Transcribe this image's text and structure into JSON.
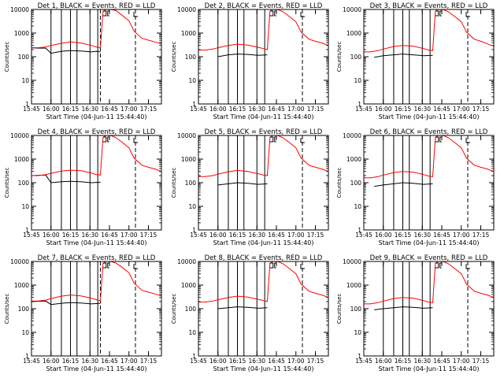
{
  "chart_data": [
    {
      "type": "line",
      "title": "Det 1, BLACK = Events, RED = LLD",
      "xlabel": "Start Time (04-Jun-11 15:44:40)",
      "ylabel": "Counts/sec",
      "yscale": "log",
      "ylim": [
        1,
        10000
      ],
      "xlim": [
        "15:45",
        "17:25"
      ],
      "xticks": [
        "15:45",
        "16:00",
        "16:15",
        "16:30",
        "16:45",
        "17:00",
        "17:15"
      ],
      "yticks": [
        "1",
        "10",
        "100",
        "1000",
        "10000"
      ],
      "series": [
        {
          "color": "#000000",
          "x": [
            "15:45",
            "15:50",
            "15:56",
            "16:00",
            "16:08",
            "16:15",
            "16:23",
            "16:31",
            "16:35",
            "16:38"
          ],
          "y": [
            240,
            230,
            230,
            140,
            170,
            180,
            175,
            160,
            170,
            160
          ]
        },
        {
          "color": "#ff0000",
          "x": [
            "15:45",
            "15:50",
            "15:56",
            "16:00",
            "16:08",
            "16:15",
            "16:23",
            "16:31",
            "16:35",
            "16:38",
            "16:40",
            "16:42",
            "16:46",
            "16:50",
            "16:55",
            "17:00",
            "17:04",
            "17:10",
            "17:15",
            "17:20",
            "17:25"
          ],
          "y": [
            240,
            240,
            260,
            300,
            370,
            420,
            380,
            300,
            260,
            240,
            8000,
            10000,
            10000,
            9000,
            5500,
            3300,
            1200,
            600,
            500,
            420,
            350
          ]
        }
      ],
      "vlines_solid": [
        "16:00",
        "16:08",
        "16:15",
        "16:20",
        "16:30",
        "16:36"
      ],
      "vlines_dashed": [
        "16:38",
        "17:05"
      ]
    },
    {
      "type": "line",
      "title": "Det 2, BLACK = Events, RED = LLD",
      "xlabel": "Start Time (04-Jun-11 15:44:40)",
      "ylabel": "Counts/sec",
      "yscale": "log",
      "ylim": [
        1,
        10000
      ],
      "xlim": [
        "15:45",
        "17:25"
      ],
      "xticks": [
        "15:45",
        "16:00",
        "16:15",
        "16:30",
        "16:45",
        "17:00",
        "17:15"
      ],
      "yticks": [
        "1",
        "10",
        "100",
        "1000",
        "10000"
      ],
      "series": [
        {
          "color": "#000000",
          "x": [
            "16:00",
            "16:08",
            "16:15",
            "16:23",
            "16:31",
            "16:38"
          ],
          "y": [
            100,
            120,
            130,
            125,
            115,
            120
          ]
        },
        {
          "color": "#ff0000",
          "x": [
            "15:45",
            "15:50",
            "15:56",
            "16:00",
            "16:08",
            "16:15",
            "16:23",
            "16:31",
            "16:35",
            "16:38",
            "16:40",
            "16:42",
            "16:46",
            "16:50",
            "16:55",
            "17:00",
            "17:04",
            "17:10",
            "17:15",
            "17:20",
            "17:25"
          ],
          "y": [
            190,
            190,
            210,
            240,
            300,
            340,
            310,
            250,
            220,
            200,
            8000,
            10000,
            10000,
            8000,
            5000,
            3000,
            1100,
            550,
            450,
            380,
            300
          ]
        }
      ],
      "vlines_solid": [
        "16:00",
        "16:08",
        "16:15",
        "16:20",
        "16:30",
        "16:36"
      ],
      "vlines_dashed": [
        "17:05"
      ]
    },
    {
      "type": "line",
      "title": "Det 3, BLACK = Events, RED = LLD",
      "xlabel": "Start Time (04-Jun-11 15:44:40)",
      "ylabel": "Counts/sec",
      "yscale": "log",
      "ylim": [
        1,
        10000
      ],
      "xlim": [
        "15:45",
        "17:25"
      ],
      "xticks": [
        "15:45",
        "16:00",
        "16:15",
        "16:30",
        "16:45",
        "17:00",
        "17:15"
      ],
      "yticks": [
        "1",
        "10",
        "100",
        "1000",
        "10000"
      ],
      "series": [
        {
          "color": "#000000",
          "x": [
            "15:53",
            "16:00",
            "16:08",
            "16:15",
            "16:23",
            "16:31",
            "16:38"
          ],
          "y": [
            95,
            110,
            120,
            130,
            120,
            110,
            115
          ]
        },
        {
          "color": "#ff0000",
          "x": [
            "15:45",
            "15:50",
            "15:56",
            "16:00",
            "16:08",
            "16:15",
            "16:23",
            "16:31",
            "16:35",
            "16:38",
            "16:40",
            "16:42",
            "16:46",
            "16:50",
            "16:55",
            "17:00",
            "17:04",
            "17:10",
            "17:15",
            "17:20",
            "17:25"
          ],
          "y": [
            160,
            160,
            180,
            210,
            270,
            300,
            280,
            220,
            190,
            180,
            8000,
            10000,
            10000,
            8000,
            5000,
            3000,
            1100,
            550,
            450,
            350,
            280
          ]
        }
      ],
      "vlines_solid": [
        "16:00",
        "16:08",
        "16:15",
        "16:20",
        "16:30",
        "16:36"
      ],
      "vlines_dashed": [
        "17:05"
      ]
    },
    {
      "type": "line",
      "title": "Det 4, BLACK = Events, RED = LLD",
      "xlabel": "Start Time (04-Jun-11 15:44:40)",
      "ylabel": "Counts/sec",
      "yscale": "log",
      "ylim": [
        1,
        10000
      ],
      "xlim": [
        "15:45",
        "17:25"
      ],
      "xticks": [
        "15:45",
        "16:00",
        "16:15",
        "16:30",
        "16:45",
        "17:00",
        "17:15"
      ],
      "yticks": [
        "1",
        "10",
        "100",
        "1000",
        "10000"
      ],
      "series": [
        {
          "color": "#000000",
          "x": [
            "15:45",
            "15:56",
            "16:00",
            "16:08",
            "16:15",
            "16:23",
            "16:31",
            "16:38"
          ],
          "y": [
            200,
            210,
            100,
            110,
            115,
            110,
            100,
            105
          ]
        },
        {
          "color": "#ff0000",
          "x": [
            "15:45",
            "15:50",
            "15:56",
            "16:00",
            "16:08",
            "16:15",
            "16:23",
            "16:31",
            "16:35",
            "16:38",
            "16:40",
            "16:42",
            "16:46",
            "16:50",
            "16:55",
            "17:00",
            "17:04",
            "17:10",
            "17:15",
            "17:20",
            "17:25"
          ],
          "y": [
            200,
            200,
            220,
            250,
            310,
            340,
            320,
            260,
            220,
            210,
            8000,
            10000,
            10000,
            8000,
            5000,
            3000,
            1100,
            550,
            450,
            380,
            300
          ]
        }
      ],
      "vlines_solid": [
        "16:00",
        "16:08",
        "16:15",
        "16:20",
        "16:30",
        "16:36"
      ],
      "vlines_dashed": [
        "17:05"
      ]
    },
    {
      "type": "line",
      "title": "Det 5, BLACK = Events, RED = LLD",
      "xlabel": "Start Time (04-Jun-11 15:44:40)",
      "ylabel": "Counts/sec",
      "yscale": "log",
      "ylim": [
        1,
        10000
      ],
      "xlim": [
        "15:45",
        "17:25"
      ],
      "xticks": [
        "15:45",
        "16:00",
        "16:15",
        "16:30",
        "16:45",
        "17:00",
        "17:15"
      ],
      "yticks": [
        "1",
        "10",
        "100",
        "1000",
        "10000"
      ],
      "series": [
        {
          "color": "#000000",
          "x": [
            "16:00",
            "16:08",
            "16:15",
            "16:23",
            "16:31",
            "16:38"
          ],
          "y": [
            80,
            90,
            100,
            95,
            85,
            90
          ]
        },
        {
          "color": "#ff0000",
          "x": [
            "15:45",
            "15:50",
            "15:56",
            "16:00",
            "16:08",
            "16:15",
            "16:23",
            "16:31",
            "16:35",
            "16:38",
            "16:40",
            "16:42",
            "16:46",
            "16:50",
            "16:55",
            "17:00",
            "17:04",
            "17:10",
            "17:15",
            "17:20",
            "17:25"
          ],
          "y": [
            180,
            180,
            200,
            230,
            290,
            330,
            300,
            240,
            210,
            200,
            8000,
            10000,
            10000,
            8000,
            5000,
            3000,
            1100,
            550,
            450,
            380,
            300
          ]
        }
      ],
      "vlines_solid": [
        "16:00",
        "16:08",
        "16:15",
        "16:20",
        "16:30",
        "16:36"
      ],
      "vlines_dashed": [
        "17:05"
      ]
    },
    {
      "type": "line",
      "title": "Det 6, BLACK = Events, RED = LLD",
      "xlabel": "Start Time (04-Jun-11 15:44:40)",
      "ylabel": "Counts/sec",
      "yscale": "log",
      "ylim": [
        1,
        10000
      ],
      "xlim": [
        "15:45",
        "17:25"
      ],
      "xticks": [
        "15:45",
        "16:00",
        "16:15",
        "16:30",
        "16:45",
        "17:00",
        "17:15"
      ],
      "yticks": [
        "1",
        "10",
        "100",
        "1000",
        "10000"
      ],
      "series": [
        {
          "color": "#000000",
          "x": [
            "15:53",
            "16:00",
            "16:08",
            "16:15",
            "16:23",
            "16:31",
            "16:38"
          ],
          "y": [
            70,
            80,
            90,
            100,
            95,
            85,
            90
          ]
        },
        {
          "color": "#ff0000",
          "x": [
            "15:45",
            "15:50",
            "15:56",
            "16:00",
            "16:08",
            "16:15",
            "16:23",
            "16:31",
            "16:35",
            "16:38",
            "16:40",
            "16:42",
            "16:46",
            "16:50",
            "16:55",
            "17:00",
            "17:04",
            "17:10",
            "17:15",
            "17:20",
            "17:25"
          ],
          "y": [
            160,
            160,
            180,
            210,
            270,
            300,
            280,
            220,
            190,
            180,
            8000,
            10000,
            10000,
            8000,
            5000,
            3000,
            1100,
            550,
            450,
            380,
            300
          ]
        }
      ],
      "vlines_solid": [
        "16:00",
        "16:08",
        "16:15",
        "16:20",
        "16:30",
        "16:36"
      ],
      "vlines_dashed": [
        "17:05"
      ]
    },
    {
      "type": "line",
      "title": "Det 7, BLACK = Events, RED = LLD",
      "xlabel": "Start Time (04-Jun-11 15:44:40)",
      "ylabel": "Counts/sec",
      "yscale": "log",
      "ylim": [
        1,
        10000
      ],
      "xlim": [
        "15:45",
        "17:25"
      ],
      "xticks": [
        "15:45",
        "16:00",
        "16:15",
        "16:30",
        "16:45",
        "17:00",
        "17:15"
      ],
      "yticks": [
        "1",
        "10",
        "100",
        "1000",
        "10000"
      ],
      "series": [
        {
          "color": "#000000",
          "x": [
            "15:45",
            "15:56",
            "16:00",
            "16:08",
            "16:15",
            "16:23",
            "16:31",
            "16:38"
          ],
          "y": [
            200,
            210,
            150,
            170,
            180,
            175,
            160,
            170
          ]
        },
        {
          "color": "#ff0000",
          "x": [
            "15:45",
            "15:50",
            "15:56",
            "16:00",
            "16:08",
            "16:15",
            "16:23",
            "16:31",
            "16:35",
            "16:38",
            "16:40",
            "16:42",
            "16:46",
            "16:50",
            "16:55",
            "17:00",
            "17:04",
            "17:10",
            "17:15",
            "17:20",
            "17:25"
          ],
          "y": [
            210,
            210,
            230,
            270,
            340,
            380,
            350,
            280,
            240,
            220,
            8000,
            10000,
            10000,
            8500,
            5500,
            3300,
            1200,
            600,
            500,
            420,
            350
          ]
        }
      ],
      "vlines_solid": [
        "16:00",
        "16:08",
        "16:15",
        "16:20",
        "16:30",
        "16:36"
      ],
      "vlines_dashed": [
        "16:38",
        "17:05"
      ]
    },
    {
      "type": "line",
      "title": "Det 8, BLACK = Events, RED = LLD",
      "xlabel": "Start Time (04-Jun-11 15:44:40)",
      "ylabel": "Counts/sec",
      "yscale": "log",
      "ylim": [
        1,
        10000
      ],
      "xlim": [
        "15:45",
        "17:25"
      ],
      "xticks": [
        "15:45",
        "16:00",
        "16:15",
        "16:30",
        "16:45",
        "17:00",
        "17:15"
      ],
      "yticks": [
        "1",
        "10",
        "100",
        "1000",
        "10000"
      ],
      "series": [
        {
          "color": "#000000",
          "x": [
            "16:00",
            "16:08",
            "16:15",
            "16:23",
            "16:31",
            "16:38"
          ],
          "y": [
            100,
            110,
            120,
            115,
            105,
            110
          ]
        },
        {
          "color": "#ff0000",
          "x": [
            "15:45",
            "15:50",
            "15:56",
            "16:00",
            "16:08",
            "16:15",
            "16:23",
            "16:31",
            "16:35",
            "16:38",
            "16:40",
            "16:42",
            "16:46",
            "16:50",
            "16:55",
            "17:00",
            "17:04",
            "17:10",
            "17:15",
            "17:20",
            "17:25"
          ],
          "y": [
            190,
            190,
            210,
            240,
            300,
            340,
            310,
            250,
            220,
            200,
            8000,
            10000,
            10000,
            8000,
            5000,
            3000,
            1100,
            550,
            450,
            380,
            300
          ]
        }
      ],
      "vlines_solid": [
        "16:00",
        "16:08",
        "16:15",
        "16:20",
        "16:30",
        "16:36"
      ],
      "vlines_dashed": [
        "17:05"
      ]
    },
    {
      "type": "line",
      "title": "Det 9, BLACK = Events, RED = LLD",
      "xlabel": "Start Time (04-Jun-11 15:44:40)",
      "ylabel": "Counts/sec",
      "yscale": "log",
      "ylim": [
        1,
        10000
      ],
      "xlim": [
        "15:45",
        "17:25"
      ],
      "xticks": [
        "15:45",
        "16:00",
        "16:15",
        "16:30",
        "16:45",
        "17:00",
        "17:15"
      ],
      "yticks": [
        "1",
        "10",
        "100",
        "1000",
        "10000"
      ],
      "series": [
        {
          "color": "#000000",
          "x": [
            "15:53",
            "16:00",
            "16:08",
            "16:15",
            "16:23",
            "16:31",
            "16:38"
          ],
          "y": [
            90,
            100,
            110,
            120,
            115,
            105,
            110
          ]
        },
        {
          "color": "#ff0000",
          "x": [
            "15:45",
            "15:50",
            "15:56",
            "16:00",
            "16:08",
            "16:15",
            "16:23",
            "16:31",
            "16:35",
            "16:38",
            "16:40",
            "16:42",
            "16:46",
            "16:50",
            "16:55",
            "17:00",
            "17:04",
            "17:10",
            "17:15",
            "17:20",
            "17:25"
          ],
          "y": [
            160,
            160,
            180,
            210,
            270,
            300,
            280,
            220,
            190,
            180,
            8000,
            10000,
            10000,
            8000,
            5000,
            3000,
            1100,
            550,
            450,
            380,
            300
          ]
        }
      ],
      "vlines_solid": [
        "16:00",
        "16:08",
        "16:15",
        "16:20",
        "16:30",
        "16:36"
      ],
      "vlines_dashed": [
        "17:05"
      ]
    }
  ]
}
